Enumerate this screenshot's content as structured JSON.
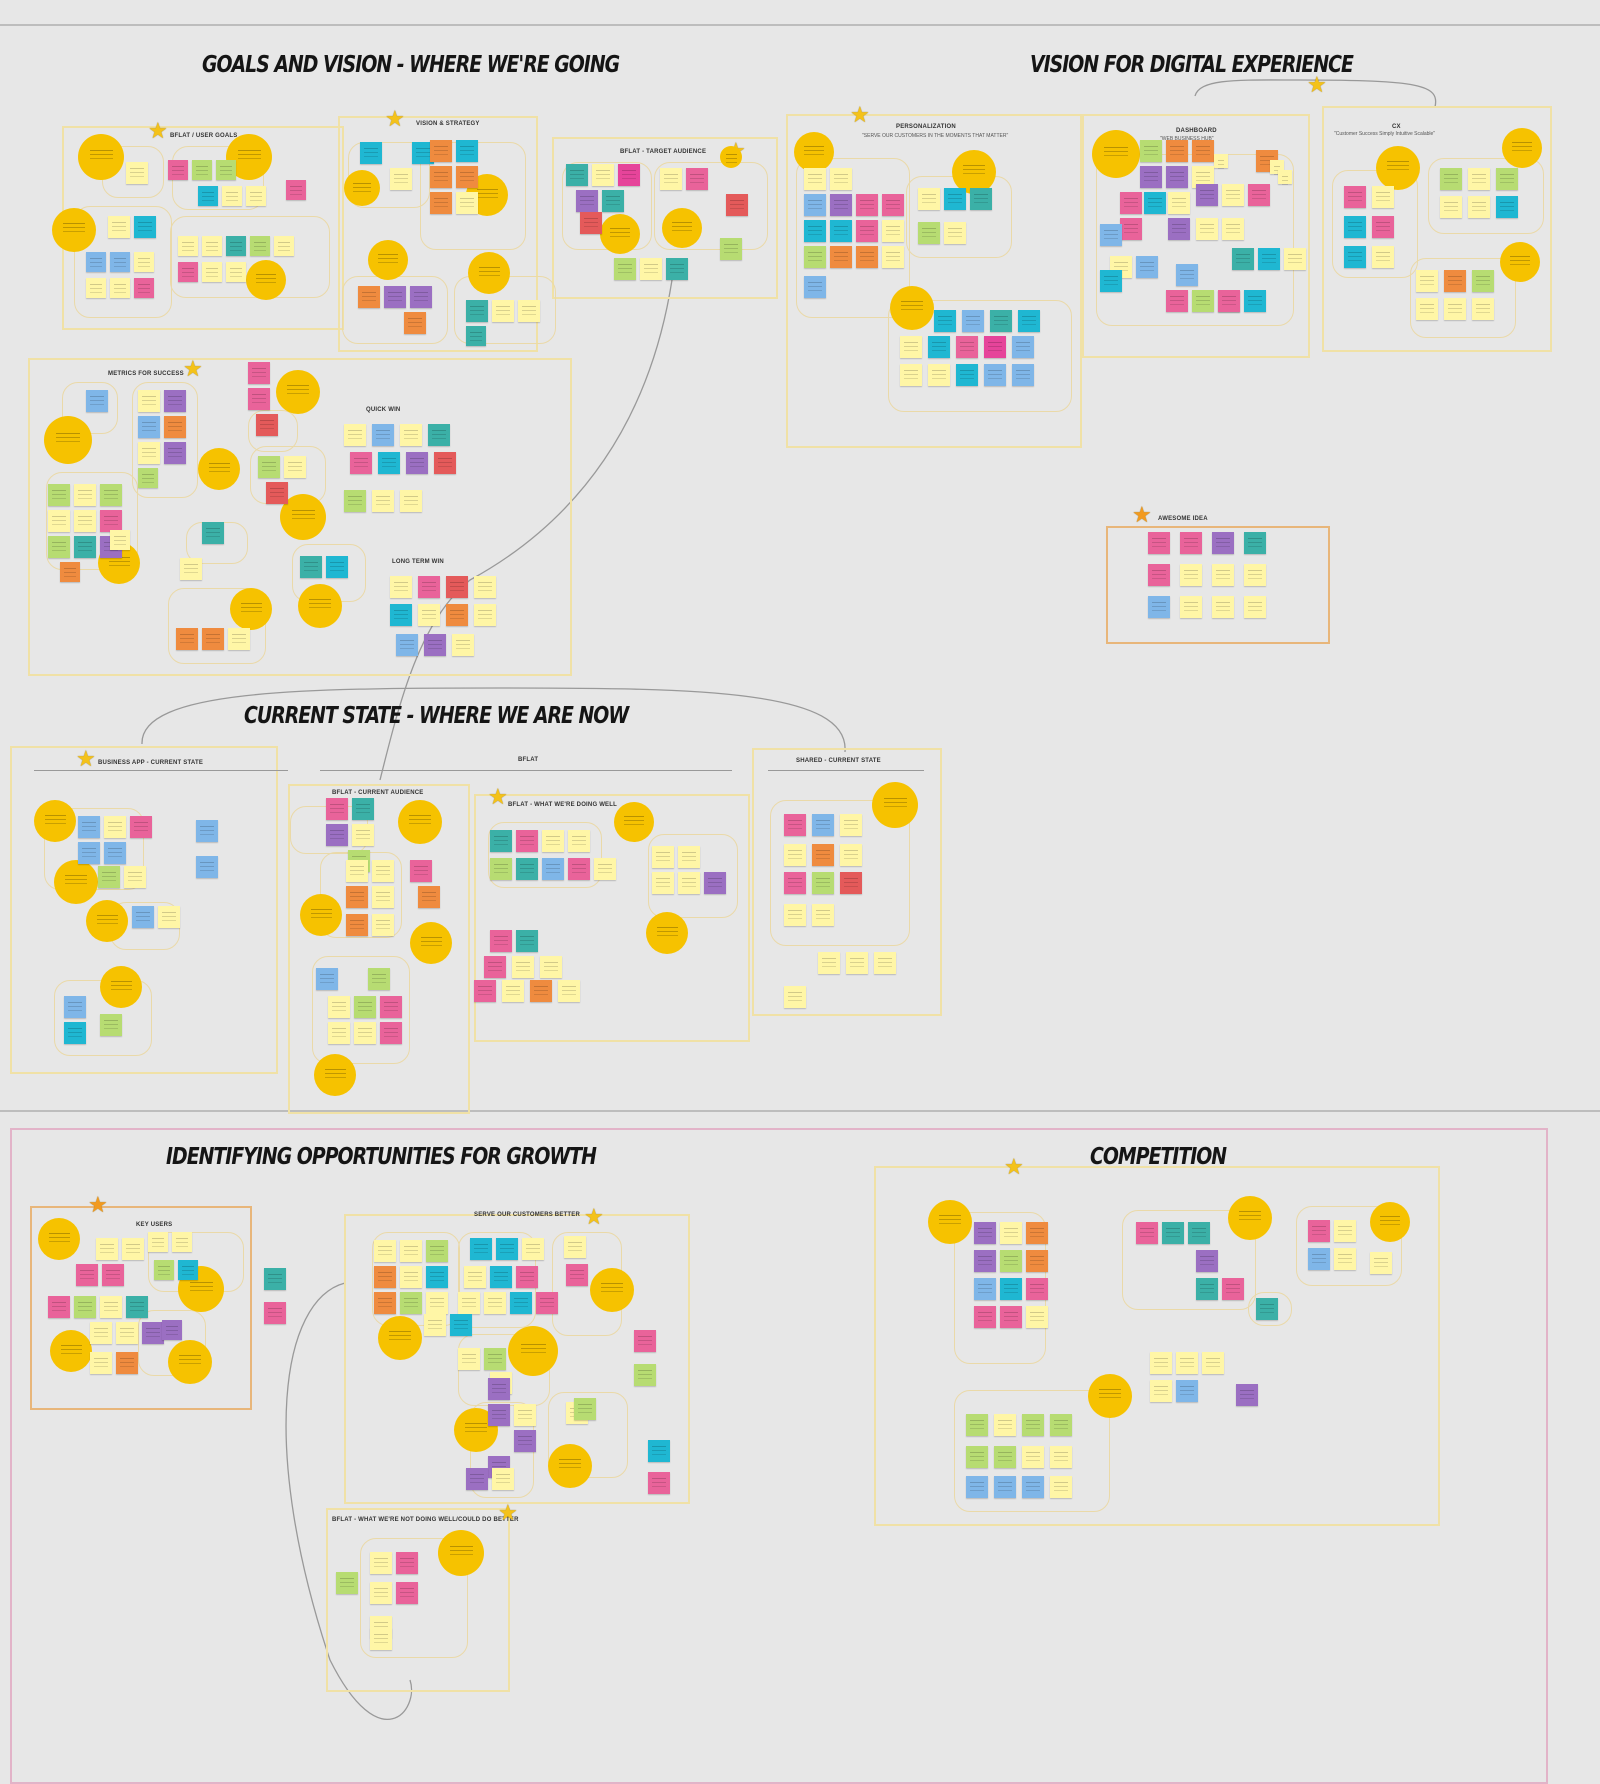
{
  "headings": {
    "goals": "GOALS AND VISION - WHERE WE'RE GOING",
    "digital": "VISION FOR DIGITAL EXPERIENCE",
    "current": "CURRENT STATE - WHERE WE ARE NOW",
    "opportunities": "IDENTIFYING OPPORTUNITIES FOR GROWTH",
    "competition": "COMPETITION"
  },
  "frames": {
    "user_goals": "BFLAT / USER GOALS",
    "vision_strategy": "VISION & STRATEGY",
    "target_audience": "BFLAT - TARGET AUDIENCE",
    "metrics": "METRICS FOR SUCCESS",
    "quick_wins": "QUICK WIN",
    "long_term": "LONG TERM WIN",
    "personalization": "PERSONALIZATION",
    "personalization_sub": "\"SERVE OUR CUSTOMERS IN THE MOMENTS THAT MATTER\"",
    "dashboard": "DASHBOARD",
    "dashboard_sub": "\"WEB BUSINESS HUB\"",
    "cx": "CX",
    "cx_sub": "\"Customer Success Simply Intuitive Scalable\"",
    "awesome": "AWESOME IDEA",
    "business_app": "BUSINESS APP - CURRENT STATE",
    "bflat": "BFLAT",
    "current_audience": "BFLAT - CURRENT AUDIENCE",
    "doing_well": "BFLAT - WHAT WE'RE DOING WELL",
    "shared": "SHARED - CURRENT STATE",
    "key_users": "KEY USERS",
    "serve_customers": "SERVE OUR CUSTOMERS BETTER",
    "not_doing_well": "BFLAT - WHAT WE'RE NOT DOING WELL/COULD DO BETTER"
  },
  "colors": {
    "background": "#e7e7e7",
    "yellow_dot": "#f6c200",
    "pink": "#e9639a",
    "cyan": "#1fb7d2",
    "teal": "#3bb0a7",
    "purple": "#9b6fc2",
    "orange": "#ef8b3f",
    "lightblue": "#7fb6e8",
    "lightyellow": "#fff6a6",
    "green": "#b7dc72",
    "magenta": "#e6449a",
    "red": "#e45a5a"
  }
}
